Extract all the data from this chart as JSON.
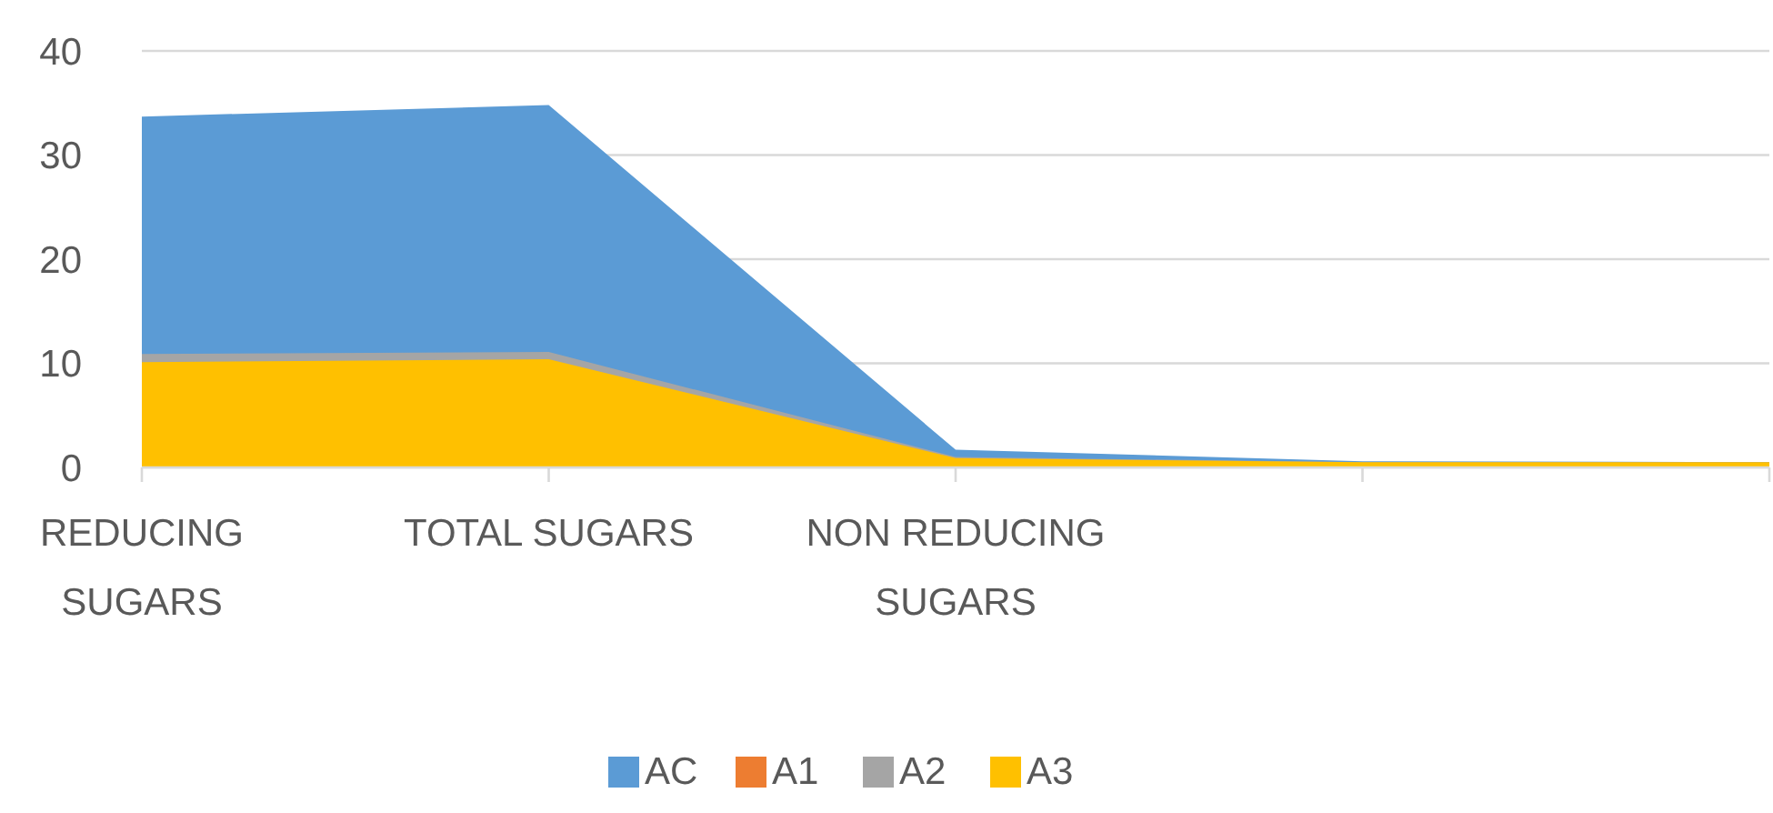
{
  "chart_data": {
    "type": "area",
    "categories": [
      "REDUCING SUGARS",
      "TOTAL SUGARS",
      "NON REDUCING SUGARS",
      null,
      null
    ],
    "series": [
      {
        "name": "AC",
        "color": "#5b9bd5",
        "values": [
          33.7,
          34.8,
          1.7,
          0.6,
          0.5
        ]
      },
      {
        "name": "A1",
        "color": "#ed7d31",
        "values": [
          null,
          null,
          null,
          null,
          null
        ]
      },
      {
        "name": "A2",
        "color": "#a5a5a5",
        "values": [
          10.9,
          11.1,
          1.0,
          0.5,
          0.5
        ]
      },
      {
        "name": "A3",
        "color": "#ffc000",
        "values": [
          10.1,
          10.4,
          0.9,
          0.5,
          0.5
        ]
      }
    ],
    "ylim": [
      0,
      40
    ],
    "yticks": [
      0,
      10,
      20,
      30,
      40
    ],
    "grid": "y",
    "legend": "bottom"
  }
}
